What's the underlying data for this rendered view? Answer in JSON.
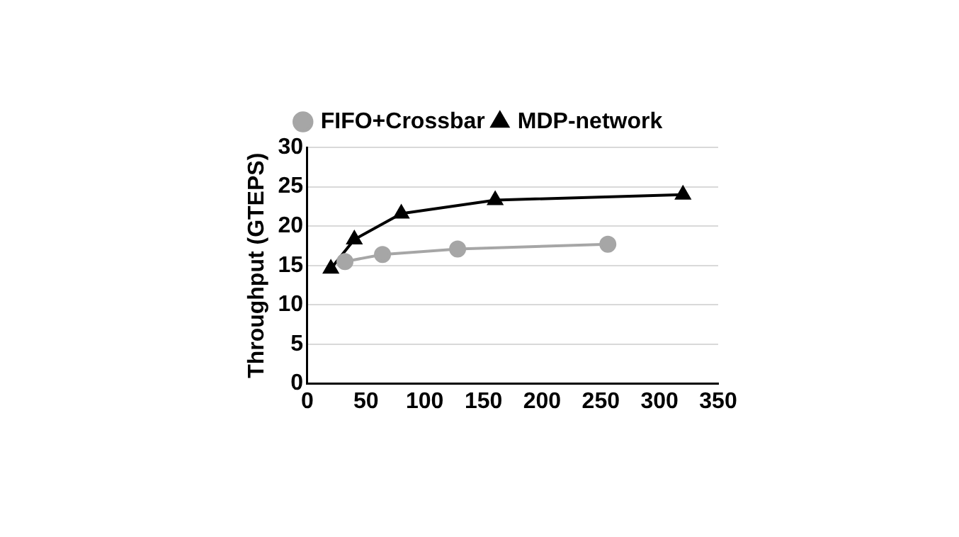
{
  "chart_data": {
    "type": "line",
    "ylabel": "Throughput (GTEPS)",
    "xlim": [
      0,
      350
    ],
    "xticks": [
      0,
      50,
      100,
      150,
      200,
      250,
      300,
      350
    ],
    "ylim": [
      0,
      30
    ],
    "yticks": [
      0,
      5,
      10,
      15,
      20,
      25,
      30
    ],
    "grid": "y",
    "legend": "top",
    "line_style": "solid",
    "series": [
      {
        "name": "FIFO+Crossbar",
        "color": "#a6a6a6",
        "marker": "circle",
        "x": [
          32,
          64,
          128,
          256
        ],
        "values": [
          15.5,
          16.4,
          17.1,
          17.7
        ]
      },
      {
        "name": "MDP-network",
        "color": "#000000",
        "marker": "triangle",
        "x": [
          20,
          40,
          80,
          160,
          320
        ],
        "values": [
          14.6,
          18.3,
          21.6,
          23.3,
          24.0
        ]
      }
    ]
  }
}
